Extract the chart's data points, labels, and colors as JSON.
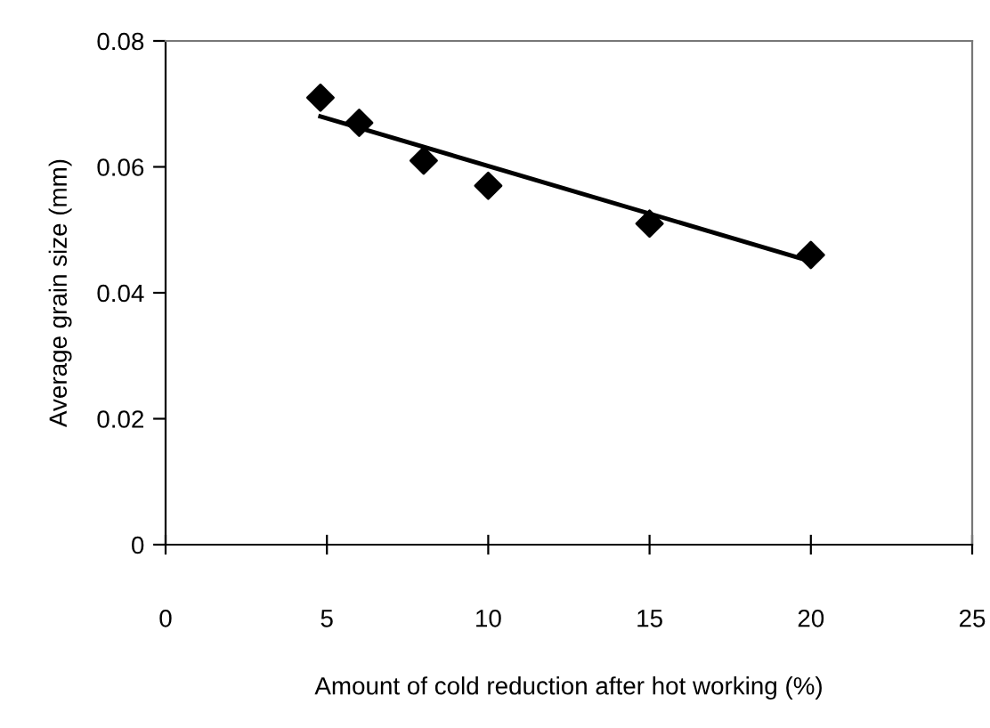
{
  "chart_data": {
    "type": "scatter",
    "xlabel": "Amount of cold reduction after hot working (%)",
    "ylabel": "Average grain size (mm)",
    "xlim": [
      0,
      25
    ],
    "xticks": [
      0,
      5,
      10,
      15,
      20,
      25
    ],
    "ylim": [
      0,
      0.08
    ],
    "yticks": [
      0,
      0.02,
      0.04,
      0.06,
      0.08
    ],
    "grid": false,
    "legend": false,
    "series": [
      {
        "color": "#000000",
        "marker": "diamond",
        "x": [
          4.8,
          6,
          8,
          10,
          15,
          20
        ],
        "values": [
          0.071,
          0.067,
          0.061,
          0.057,
          0.051,
          0.046
        ]
      },
      {
        "type": "line",
        "color": "#000000",
        "line_style": "solid",
        "marker": "none",
        "x": [
          4.8,
          20
        ],
        "values": [
          0.068,
          0.045
        ]
      }
    ]
  }
}
